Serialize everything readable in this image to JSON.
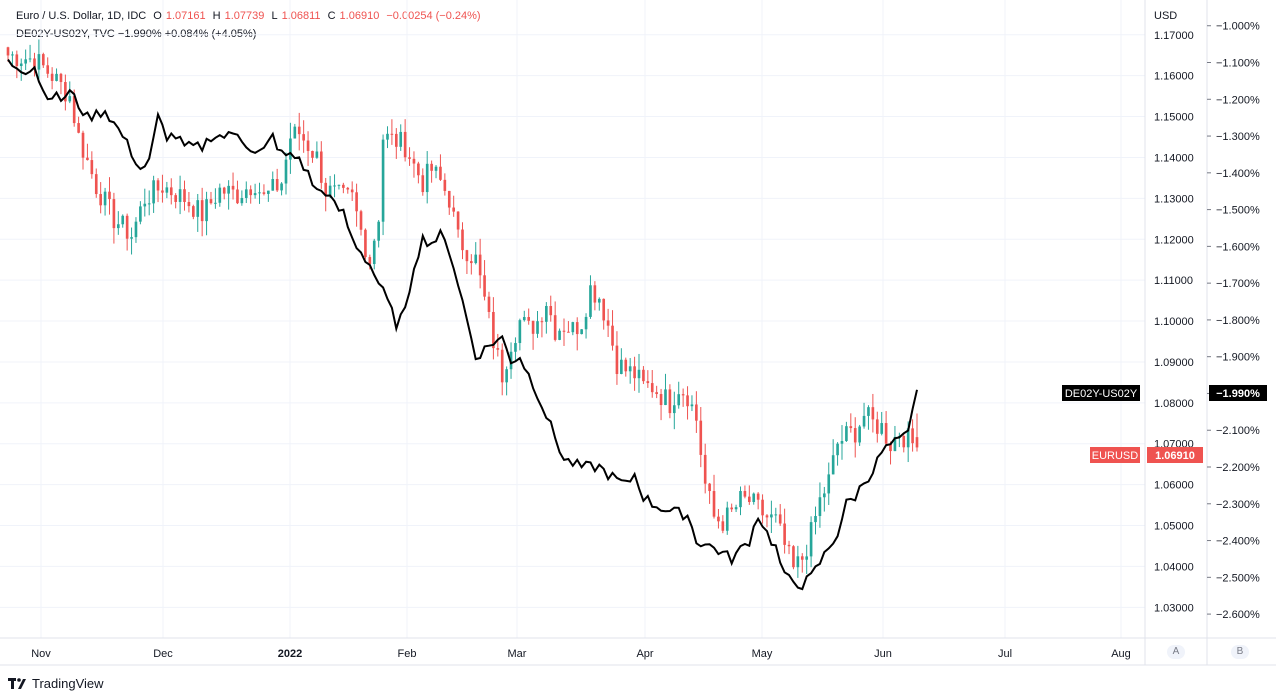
{
  "header": {
    "symbol_line": "Euro / U.S. Dollar, 1D, IDC",
    "open_label": "O",
    "open": "1.07161",
    "high_label": "H",
    "high": "1.07739",
    "low_label": "L",
    "low": "1.06811",
    "close_label": "C",
    "close": "1.06910",
    "change": "−0.00254 (−0.24%)",
    "overlay_line": "DE02Y-US02Y, TVC −1.990% +0.084% (+4.05%)"
  },
  "axis": {
    "currency_label": "USD",
    "corner_a": "A",
    "corner_b": "B"
  },
  "labels": {
    "spread_name": "DE02Y-US02Y",
    "spread_value": "−1.990%",
    "eur_name": "EURUSD",
    "eur_value": "1.06910"
  },
  "branding": {
    "logo_text": "TradingView"
  },
  "colors": {
    "up": "#26a69a",
    "down": "#ef5350",
    "line": "#000000",
    "grid": "#f0f3fa"
  },
  "chart_data": {
    "type": "candlestick+line",
    "x_ticks": [
      "Nov",
      "Dec",
      "2022",
      "Feb",
      "Mar",
      "Apr",
      "May",
      "Jun",
      "Jul",
      "Aug"
    ],
    "left_axis": {
      "ticks": [
        "1.17000",
        "1.16000",
        "1.15000",
        "1.14000",
        "1.13000",
        "1.12000",
        "1.11000",
        "1.10000",
        "1.09000",
        "1.08000",
        "1.07000",
        "1.06000",
        "1.05000",
        "1.04000",
        "1.03000"
      ],
      "ylim": [
        1.0225,
        1.1785
      ]
    },
    "right_axis": {
      "ticks": [
        "−1.000%",
        "−1.100%",
        "−1.200%",
        "−1.300%",
        "−1.400%",
        "−1.500%",
        "−1.600%",
        "−1.700%",
        "−1.800%",
        "−1.900%",
        "−2.000%",
        "−2.100%",
        "−2.200%",
        "−2.300%",
        "−2.400%",
        "−2.500%",
        "−2.600%"
      ],
      "ylim": [
        -2.665,
        -0.93
      ]
    },
    "eurusd_anchors": [
      [
        0,
        1.165
      ],
      [
        6,
        1.164
      ],
      [
        10,
        1.16
      ],
      [
        14,
        1.155
      ],
      [
        16,
        1.145
      ],
      [
        20,
        1.133
      ],
      [
        24,
        1.125
      ],
      [
        28,
        1.121
      ],
      [
        31,
        1.13
      ],
      [
        35,
        1.133
      ],
      [
        40,
        1.13
      ],
      [
        44,
        1.126
      ],
      [
        48,
        1.132
      ],
      [
        52,
        1.131
      ],
      [
        56,
        1.134
      ],
      [
        58,
        1.13
      ],
      [
        62,
        1.134
      ],
      [
        64,
        1.145
      ],
      [
        66,
        1.146
      ],
      [
        70,
        1.14
      ],
      [
        72,
        1.132
      ],
      [
        76,
        1.13
      ],
      [
        78,
        1.13
      ],
      [
        80,
        1.122
      ],
      [
        82,
        1.115
      ],
      [
        84,
        1.126
      ],
      [
        85,
        1.145
      ],
      [
        88,
        1.144
      ],
      [
        90,
        1.143
      ],
      [
        92,
        1.138
      ],
      [
        94,
        1.134
      ],
      [
        96,
        1.137
      ],
      [
        98,
        1.134
      ],
      [
        100,
        1.13
      ],
      [
        102,
        1.12
      ],
      [
        106,
        1.115
      ],
      [
        108,
        1.105
      ],
      [
        110,
        1.095
      ],
      [
        112,
        1.087
      ],
      [
        114,
        1.095
      ],
      [
        116,
        1.1
      ],
      [
        118,
        1.098
      ],
      [
        120,
        1.1
      ],
      [
        122,
        1.105
      ],
      [
        124,
        1.098
      ],
      [
        126,
        1.099
      ],
      [
        128,
        1.098
      ],
      [
        130,
        1.1
      ],
      [
        132,
        1.108
      ],
      [
        134,
        1.106
      ],
      [
        136,
        1.099
      ],
      [
        138,
        1.09
      ],
      [
        140,
        1.088
      ],
      [
        142,
        1.087
      ],
      [
        144,
        1.084
      ],
      [
        146,
        1.084
      ],
      [
        148,
        1.082
      ],
      [
        150,
        1.08
      ],
      [
        152,
        1.084
      ],
      [
        154,
        1.082
      ],
      [
        156,
        1.076
      ],
      [
        158,
        1.06
      ],
      [
        160,
        1.052
      ],
      [
        162,
        1.051
      ],
      [
        164,
        1.053
      ],
      [
        166,
        1.056
      ],
      [
        168,
        1.056
      ],
      [
        170,
        1.054
      ],
      [
        172,
        1.052
      ],
      [
        174,
        1.051
      ],
      [
        176,
        1.045
      ],
      [
        178,
        1.039
      ],
      [
        180,
        1.042
      ],
      [
        182,
        1.048
      ],
      [
        184,
        1.056
      ],
      [
        186,
        1.061
      ],
      [
        188,
        1.07
      ],
      [
        190,
        1.072
      ],
      [
        192,
        1.073
      ],
      [
        194,
        1.077
      ],
      [
        196,
        1.075
      ],
      [
        198,
        1.074
      ],
      [
        200,
        1.07
      ],
      [
        202,
        1.073
      ],
      [
        204,
        1.071
      ],
      [
        206,
        1.0691
      ]
    ],
    "spread_anchors": [
      [
        0,
        -1.1
      ],
      [
        4,
        -1.12
      ],
      [
        6,
        -1.11
      ],
      [
        8,
        -1.18
      ],
      [
        12,
        -1.2
      ],
      [
        14,
        -1.18
      ],
      [
        18,
        -1.25
      ],
      [
        22,
        -1.23
      ],
      [
        26,
        -1.3
      ],
      [
        30,
        -1.39
      ],
      [
        32,
        -1.37
      ],
      [
        34,
        -1.25
      ],
      [
        36,
        -1.3
      ],
      [
        38,
        -1.3
      ],
      [
        40,
        -1.33
      ],
      [
        44,
        -1.33
      ],
      [
        46,
        -1.3
      ],
      [
        50,
        -1.3
      ],
      [
        52,
        -1.29
      ],
      [
        56,
        -1.35
      ],
      [
        58,
        -1.34
      ],
      [
        60,
        -1.3
      ],
      [
        62,
        -1.35
      ],
      [
        66,
        -1.36
      ],
      [
        70,
        -1.45
      ],
      [
        72,
        -1.45
      ],
      [
        74,
        -1.49
      ],
      [
        76,
        -1.51
      ],
      [
        78,
        -1.58
      ],
      [
        82,
        -1.65
      ],
      [
        86,
        -1.75
      ],
      [
        88,
        -1.81
      ],
      [
        90,
        -1.78
      ],
      [
        92,
        -1.65
      ],
      [
        94,
        -1.58
      ],
      [
        96,
        -1.59
      ],
      [
        98,
        -1.57
      ],
      [
        100,
        -1.61
      ],
      [
        102,
        -1.7
      ],
      [
        104,
        -1.8
      ],
      [
        106,
        -1.9
      ],
      [
        108,
        -1.88
      ],
      [
        110,
        -1.86
      ],
      [
        112,
        -1.85
      ],
      [
        114,
        -1.91
      ],
      [
        116,
        -1.9
      ],
      [
        118,
        -1.95
      ],
      [
        120,
        -2.0
      ],
      [
        124,
        -2.12
      ],
      [
        126,
        -2.18
      ],
      [
        130,
        -2.2
      ],
      [
        134,
        -2.2
      ],
      [
        136,
        -2.22
      ],
      [
        140,
        -2.25
      ],
      [
        142,
        -2.22
      ],
      [
        144,
        -2.28
      ],
      [
        146,
        -2.3
      ],
      [
        150,
        -2.32
      ],
      [
        154,
        -2.33
      ],
      [
        156,
        -2.4
      ],
      [
        160,
        -2.42
      ],
      [
        164,
        -2.45
      ],
      [
        168,
        -2.4
      ],
      [
        170,
        -2.33
      ],
      [
        172,
        -2.38
      ],
      [
        174,
        -2.42
      ],
      [
        176,
        -2.5
      ],
      [
        180,
        -2.52
      ],
      [
        182,
        -2.5
      ],
      [
        184,
        -2.46
      ],
      [
        186,
        -2.42
      ],
      [
        188,
        -2.38
      ],
      [
        190,
        -2.3
      ],
      [
        192,
        -2.28
      ],
      [
        194,
        -2.24
      ],
      [
        196,
        -2.21
      ],
      [
        198,
        -2.16
      ],
      [
        200,
        -2.14
      ],
      [
        202,
        -2.13
      ],
      [
        204,
        -2.11
      ],
      [
        206,
        -1.99
      ]
    ],
    "n_days": 207
  }
}
